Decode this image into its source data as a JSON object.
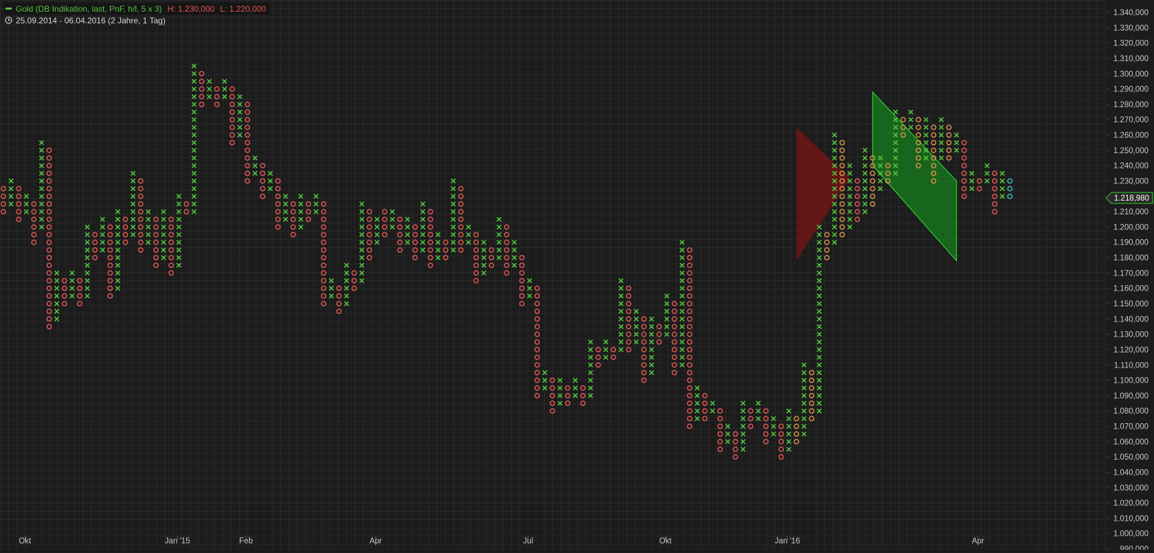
{
  "legend": {
    "series_label": "Gold (DB Indikation, last, PnF, h/l, 5 x 3)",
    "high_label": "H: 1.230,000",
    "low_label": "L: 1.220,000",
    "period_label": "25.09.2014 - 06.04.2016 (2 Jahre, 1 Tag)"
  },
  "colors": {
    "background": "#1c1c1c",
    "grid": "#282828",
    "x_mark": "#53c63f",
    "o_mark": "#e45656",
    "o_highlight": "#d7934a",
    "last_o": "#3fb6b6",
    "triangle_fill": "#7a1414",
    "channel_fill": "#14a01e",
    "channel_line": "#2fd02f",
    "axis_text": "#c8c8c8"
  },
  "price_marker": {
    "value": 1218.98,
    "label": "1.218,980"
  },
  "chart_data": {
    "type": "point-and-figure",
    "box_size": 5,
    "reversal": 3,
    "period_start": "25.09.2014",
    "period_end": "06.04.2016",
    "x_month_labels": [
      "Okt",
      "Jan '15",
      "Feb",
      "Apr",
      "Jul",
      "Okt",
      "Jan '16",
      "Apr"
    ],
    "y_range": [
      990,
      1340
    ],
    "y_tick_labels": [
      "1.340,000",
      "1.330,000",
      "1.320,000",
      "1.310,000",
      "1.300,000",
      "1.290,000",
      "1.280,000",
      "1.270,000",
      "1.260,000",
      "1.250,000",
      "1.240,000",
      "1.230,000",
      "1.220,000",
      "1.210,000",
      "1.200,000",
      "1.190,000",
      "1.180,000",
      "1.170,000",
      "1.160,000",
      "1.150,000",
      "1.140,000",
      "1.130,000",
      "1.120,000",
      "1.110,000",
      "1.100,000",
      "1.090,000",
      "1.080,000",
      "1.070,000",
      "1.060,000",
      "1.050,000",
      "1.040,000",
      "1.030,000",
      "1.020,000",
      "1.010,000",
      "1.000,000",
      "990,000"
    ],
    "columns": [
      {
        "t": "O",
        "lo": 1210,
        "hi": 1225
      },
      {
        "t": "X",
        "lo": 1215,
        "hi": 1230
      },
      {
        "t": "O",
        "lo": 1205,
        "hi": 1225
      },
      {
        "t": "X",
        "lo": 1210,
        "hi": 1220
      },
      {
        "t": "O",
        "lo": 1190,
        "hi": 1215
      },
      {
        "t": "X",
        "lo": 1200,
        "hi": 1255
      },
      {
        "t": "O",
        "lo": 1135,
        "hi": 1250
      },
      {
        "t": "X",
        "lo": 1140,
        "hi": 1170
      },
      {
        "t": "O",
        "lo": 1150,
        "hi": 1165
      },
      {
        "t": "X",
        "lo": 1155,
        "hi": 1170
      },
      {
        "t": "O",
        "lo": 1150,
        "hi": 1165
      },
      {
        "t": "X",
        "lo": 1155,
        "hi": 1200
      },
      {
        "t": "O",
        "lo": 1180,
        "hi": 1195
      },
      {
        "t": "X",
        "lo": 1185,
        "hi": 1205
      },
      {
        "t": "O",
        "lo": 1155,
        "hi": 1200
      },
      {
        "t": "X",
        "lo": 1160,
        "hi": 1210
      },
      {
        "t": "O",
        "lo": 1190,
        "hi": 1205
      },
      {
        "t": "X",
        "lo": 1195,
        "hi": 1235
      },
      {
        "t": "O",
        "lo": 1185,
        "hi": 1230
      },
      {
        "t": "X",
        "lo": 1190,
        "hi": 1210
      },
      {
        "t": "O",
        "lo": 1175,
        "hi": 1205
      },
      {
        "t": "X",
        "lo": 1180,
        "hi": 1210
      },
      {
        "t": "O",
        "lo": 1170,
        "hi": 1205
      },
      {
        "t": "X",
        "lo": 1175,
        "hi": 1220
      },
      {
        "t": "O",
        "lo": 1210,
        "hi": 1215
      },
      {
        "t": "X",
        "lo": 1210,
        "hi": 1305
      },
      {
        "t": "O",
        "lo": 1280,
        "hi": 1300
      },
      {
        "t": "X",
        "lo": 1285,
        "hi": 1295
      },
      {
        "t": "O",
        "lo": 1280,
        "hi": 1290
      },
      {
        "t": "X",
        "lo": 1285,
        "hi": 1295
      },
      {
        "t": "O",
        "lo": 1255,
        "hi": 1290
      },
      {
        "t": "X",
        "lo": 1260,
        "hi": 1285
      },
      {
        "t": "O",
        "lo": 1230,
        "hi": 1280
      },
      {
        "t": "X",
        "lo": 1235,
        "hi": 1245
      },
      {
        "t": "O",
        "lo": 1220,
        "hi": 1240
      },
      {
        "t": "X",
        "lo": 1225,
        "hi": 1235
      },
      {
        "t": "O",
        "lo": 1200,
        "hi": 1230
      },
      {
        "t": "X",
        "lo": 1205,
        "hi": 1220
      },
      {
        "t": "O",
        "lo": 1195,
        "hi": 1215
      },
      {
        "t": "X",
        "lo": 1200,
        "hi": 1220
      },
      {
        "t": "O",
        "lo": 1205,
        "hi": 1215
      },
      {
        "t": "X",
        "lo": 1210,
        "hi": 1220
      },
      {
        "t": "O",
        "lo": 1150,
        "hi": 1215
      },
      {
        "t": "X",
        "lo": 1155,
        "hi": 1165
      },
      {
        "t": "O",
        "lo": 1145,
        "hi": 1160
      },
      {
        "t": "X",
        "lo": 1150,
        "hi": 1175
      },
      {
        "t": "O",
        "lo": 1160,
        "hi": 1170
      },
      {
        "t": "X",
        "lo": 1165,
        "hi": 1215
      },
      {
        "t": "O",
        "lo": 1180,
        "hi": 1210
      },
      {
        "t": "X",
        "lo": 1190,
        "hi": 1205
      },
      {
        "t": "O",
        "lo": 1195,
        "hi": 1210
      },
      {
        "t": "X",
        "lo": 1200,
        "hi": 1210
      },
      {
        "t": "O",
        "lo": 1185,
        "hi": 1205
      },
      {
        "t": "X",
        "lo": 1190,
        "hi": 1205
      },
      {
        "t": "O",
        "lo": 1180,
        "hi": 1200
      },
      {
        "t": "X",
        "lo": 1185,
        "hi": 1215
      },
      {
        "t": "O",
        "lo": 1175,
        "hi": 1210
      },
      {
        "t": "X",
        "lo": 1180,
        "hi": 1195
      },
      {
        "t": "O",
        "lo": 1180,
        "hi": 1190
      },
      {
        "t": "X",
        "lo": 1185,
        "hi": 1230
      },
      {
        "t": "O",
        "lo": 1185,
        "hi": 1225
      },
      {
        "t": "X",
        "lo": 1190,
        "hi": 1200
      },
      {
        "t": "O",
        "lo": 1165,
        "hi": 1195
      },
      {
        "t": "X",
        "lo": 1170,
        "hi": 1190
      },
      {
        "t": "O",
        "lo": 1175,
        "hi": 1185
      },
      {
        "t": "X",
        "lo": 1180,
        "hi": 1205
      },
      {
        "t": "O",
        "lo": 1170,
        "hi": 1200
      },
      {
        "t": "X",
        "lo": 1175,
        "hi": 1190
      },
      {
        "t": "O",
        "lo": 1150,
        "hi": 1180
      },
      {
        "t": "X",
        "lo": 1155,
        "hi": 1165
      },
      {
        "t": "O",
        "lo": 1090,
        "hi": 1160
      },
      {
        "t": "X",
        "lo": 1095,
        "hi": 1105
      },
      {
        "t": "O",
        "lo": 1080,
        "hi": 1100
      },
      {
        "t": "X",
        "lo": 1085,
        "hi": 1100
      },
      {
        "t": "O",
        "lo": 1085,
        "hi": 1095
      },
      {
        "t": "X",
        "lo": 1090,
        "hi": 1100
      },
      {
        "t": "O",
        "lo": 1085,
        "hi": 1095
      },
      {
        "t": "X",
        "lo": 1090,
        "hi": 1125
      },
      {
        "t": "O",
        "lo": 1110,
        "hi": 1120
      },
      {
        "t": "X",
        "lo": 1115,
        "hi": 1125
      },
      {
        "t": "O",
        "lo": 1115,
        "hi": 1120
      },
      {
        "t": "X",
        "lo": 1120,
        "hi": 1165
      },
      {
        "t": "O",
        "lo": 1120,
        "hi": 1160
      },
      {
        "t": "X",
        "lo": 1125,
        "hi": 1145
      },
      {
        "t": "O",
        "lo": 1100,
        "hi": 1140
      },
      {
        "t": "X",
        "lo": 1105,
        "hi": 1140
      },
      {
        "t": "O",
        "lo": 1125,
        "hi": 1135
      },
      {
        "t": "X",
        "lo": 1130,
        "hi": 1155
      },
      {
        "t": "O",
        "lo": 1105,
        "hi": 1150
      },
      {
        "t": "X",
        "lo": 1110,
        "hi": 1190
      },
      {
        "t": "O",
        "lo": 1070,
        "hi": 1185
      },
      {
        "t": "X",
        "lo": 1075,
        "hi": 1095
      },
      {
        "t": "O",
        "lo": 1075,
        "hi": 1090
      },
      {
        "t": "X",
        "lo": 1080,
        "hi": 1085
      },
      {
        "t": "O",
        "lo": 1055,
        "hi": 1080
      },
      {
        "t": "X",
        "lo": 1060,
        "hi": 1070
      },
      {
        "t": "O",
        "lo": 1050,
        "hi": 1065
      },
      {
        "t": "X",
        "lo": 1055,
        "hi": 1085
      },
      {
        "t": "O",
        "lo": 1070,
        "hi": 1080
      },
      {
        "t": "X",
        "lo": 1075,
        "hi": 1085
      },
      {
        "t": "O",
        "lo": 1060,
        "hi": 1080
      },
      {
        "t": "X",
        "lo": 1065,
        "hi": 1075
      },
      {
        "t": "O",
        "lo": 1050,
        "hi": 1070
      },
      {
        "t": "X",
        "lo": 1055,
        "hi": 1080
      },
      {
        "t": "O",
        "lo": 1060,
        "hi": 1075
      },
      {
        "t": "X",
        "lo": 1065,
        "hi": 1110
      },
      {
        "t": "O",
        "lo": 1075,
        "hi": 1105
      },
      {
        "t": "X",
        "lo": 1080,
        "hi": 1200
      },
      {
        "t": "O",
        "lo": 1180,
        "hi": 1195
      },
      {
        "t": "X",
        "lo": 1190,
        "hi": 1260
      },
      {
        "t": "O",
        "lo": 1195,
        "hi": 1255
      },
      {
        "t": "X",
        "lo": 1200,
        "hi": 1240
      },
      {
        "t": "O",
        "lo": 1205,
        "hi": 1230
      },
      {
        "t": "X",
        "lo": 1210,
        "hi": 1250
      },
      {
        "t": "O",
        "lo": 1215,
        "hi": 1245
      },
      {
        "t": "X",
        "lo": 1225,
        "hi": 1245
      },
      {
        "t": "O",
        "lo": 1230,
        "hi": 1240
      },
      {
        "t": "X",
        "lo": 1235,
        "hi": 1275
      },
      {
        "t": "O",
        "lo": 1260,
        "hi": 1270
      },
      {
        "t": "X",
        "lo": 1265,
        "hi": 1275
      },
      {
        "t": "O",
        "lo": 1240,
        "hi": 1270
      },
      {
        "t": "X",
        "lo": 1245,
        "hi": 1270
      },
      {
        "t": "O",
        "lo": 1230,
        "hi": 1265
      },
      {
        "t": "X",
        "lo": 1245,
        "hi": 1270
      },
      {
        "t": "O",
        "lo": 1245,
        "hi": 1265
      },
      {
        "t": "X",
        "lo": 1250,
        "hi": 1260
      },
      {
        "t": "O",
        "lo": 1220,
        "hi": 1255
      },
      {
        "t": "X",
        "lo": 1225,
        "hi": 1235
      },
      {
        "t": "O",
        "lo": 1225,
        "hi": 1230
      },
      {
        "t": "X",
        "lo": 1230,
        "hi": 1240
      },
      {
        "t": "O",
        "lo": 1210,
        "hi": 1235
      },
      {
        "t": "X",
        "lo": 1220,
        "hi": 1235
      },
      {
        "t": "O",
        "lo": 1220,
        "hi": 1230
      }
    ],
    "patterns": [
      {
        "kind": "triangle",
        "fill": "red",
        "points": [
          {
            "col": 104,
            "price": 1265
          },
          {
            "col": 104,
            "price": 1178
          },
          {
            "col": 111,
            "price": 1232
          }
        ]
      },
      {
        "kind": "channel",
        "fill": "green",
        "points": [
          {
            "col": 114,
            "price": 1288
          },
          {
            "col": 114,
            "price": 1240
          },
          {
            "col": 125,
            "price": 1178
          },
          {
            "col": 125,
            "price": 1230
          }
        ]
      }
    ]
  }
}
